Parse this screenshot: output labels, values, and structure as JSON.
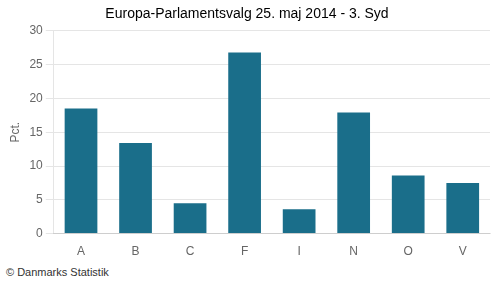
{
  "chart_data": {
    "type": "bar",
    "title": "Europa-Parlamentsvalg 25. maj 2014 - 3. Syd",
    "categories": [
      "A",
      "B",
      "C",
      "F",
      "I",
      "N",
      "O",
      "V"
    ],
    "values": [
      18.5,
      13.4,
      4.5,
      26.8,
      3.6,
      17.9,
      8.6,
      7.5
    ],
    "color": "#1a6e8a",
    "ylabel": "Pct.",
    "ylim": [
      0,
      30
    ],
    "yticks": [
      0,
      5,
      10,
      15,
      20,
      25,
      30
    ],
    "grid": true,
    "footer": "© Danmarks Statistik"
  }
}
